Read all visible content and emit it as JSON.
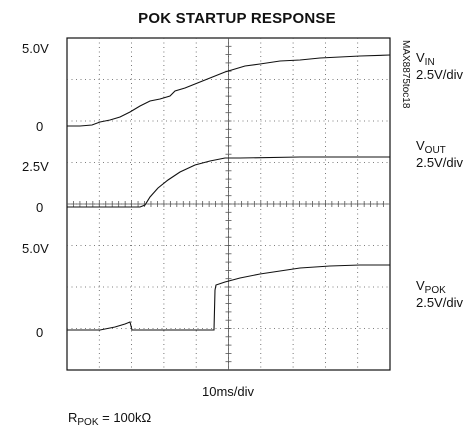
{
  "header": {
    "title": "POK STARTUP RESPONSE"
  },
  "left_labels": [
    "5.0V",
    "0",
    "2.5V",
    "0",
    "5.0V",
    "0"
  ],
  "channels": [
    {
      "name": "V",
      "sub": "IN",
      "scale": "2.5V/div"
    },
    {
      "name": "V",
      "sub": "OUT",
      "scale": "2.5V/div"
    },
    {
      "name": "V",
      "sub": "POK",
      "scale": "2.5V/div"
    }
  ],
  "side_note": "MAX8875toc18",
  "x_scale": "10ms/div",
  "footnote": {
    "main": "R",
    "sub": "POK",
    "rest": " = 100kΩ"
  }
}
